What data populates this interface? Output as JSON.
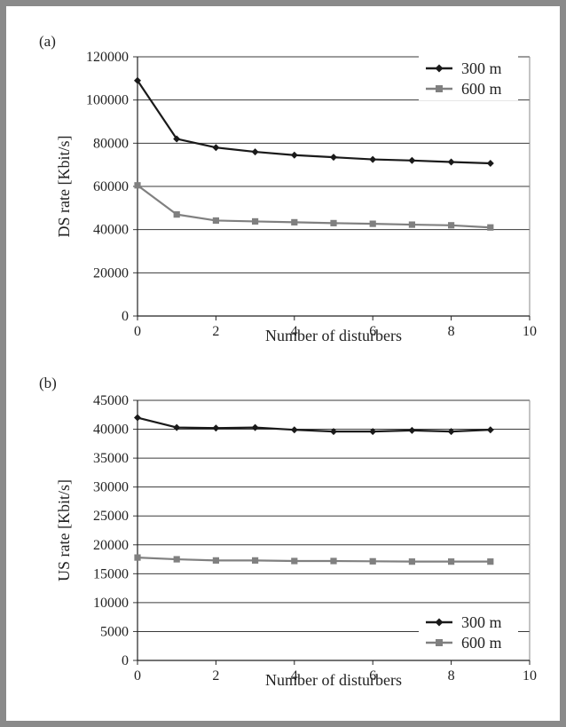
{
  "chart_data": [
    {
      "panel_label": "(a)",
      "type": "line",
      "xlabel": "Number of disturbers",
      "ylabel": "DS rate [Kbit/s]",
      "xlim": [
        0,
        10
      ],
      "ylim": [
        0,
        120000
      ],
      "x_ticks": [
        "0",
        "2",
        "4",
        "6",
        "8",
        "10"
      ],
      "y_ticks": [
        "0",
        "20000",
        "40000",
        "60000",
        "80000",
        "100000",
        "120000"
      ],
      "grid": "horizontal",
      "legend_position": "top-right",
      "x": [
        0,
        1,
        2,
        3,
        4,
        5,
        6,
        7,
        8,
        9
      ],
      "series": [
        {
          "name": "300 m",
          "color": "#1a1a1a",
          "marker": "diamond",
          "values": [
            109000,
            82000,
            78000,
            76000,
            74500,
            73500,
            72500,
            72000,
            71300,
            70700
          ]
        },
        {
          "name": "600 m",
          "color": "#808080",
          "marker": "square",
          "values": [
            60500,
            47000,
            44200,
            43800,
            43400,
            43000,
            42700,
            42300,
            42000,
            41000
          ]
        }
      ]
    },
    {
      "panel_label": "(b)",
      "type": "line",
      "xlabel": "Number of disturbers",
      "ylabel": "US rate [Kbit/s]",
      "xlim": [
        0,
        10
      ],
      "ylim": [
        0,
        45000
      ],
      "x_ticks": [
        "0",
        "2",
        "4",
        "6",
        "8",
        "10"
      ],
      "y_ticks": [
        "0",
        "5000",
        "10000",
        "15000",
        "20000",
        "25000",
        "30000",
        "35000",
        "40000",
        "45000"
      ],
      "grid": "horizontal",
      "legend_position": "bottom-right",
      "x": [
        0,
        1,
        2,
        3,
        4,
        5,
        6,
        7,
        8,
        9
      ],
      "series": [
        {
          "name": "300 m",
          "color": "#1a1a1a",
          "marker": "diamond",
          "values": [
            42000,
            40300,
            40200,
            40300,
            39900,
            39600,
            39600,
            39800,
            39600,
            39900
          ]
        },
        {
          "name": "600 m",
          "color": "#808080",
          "marker": "square",
          "values": [
            17800,
            17500,
            17300,
            17300,
            17200,
            17200,
            17150,
            17100,
            17100,
            17100
          ]
        }
      ]
    }
  ]
}
